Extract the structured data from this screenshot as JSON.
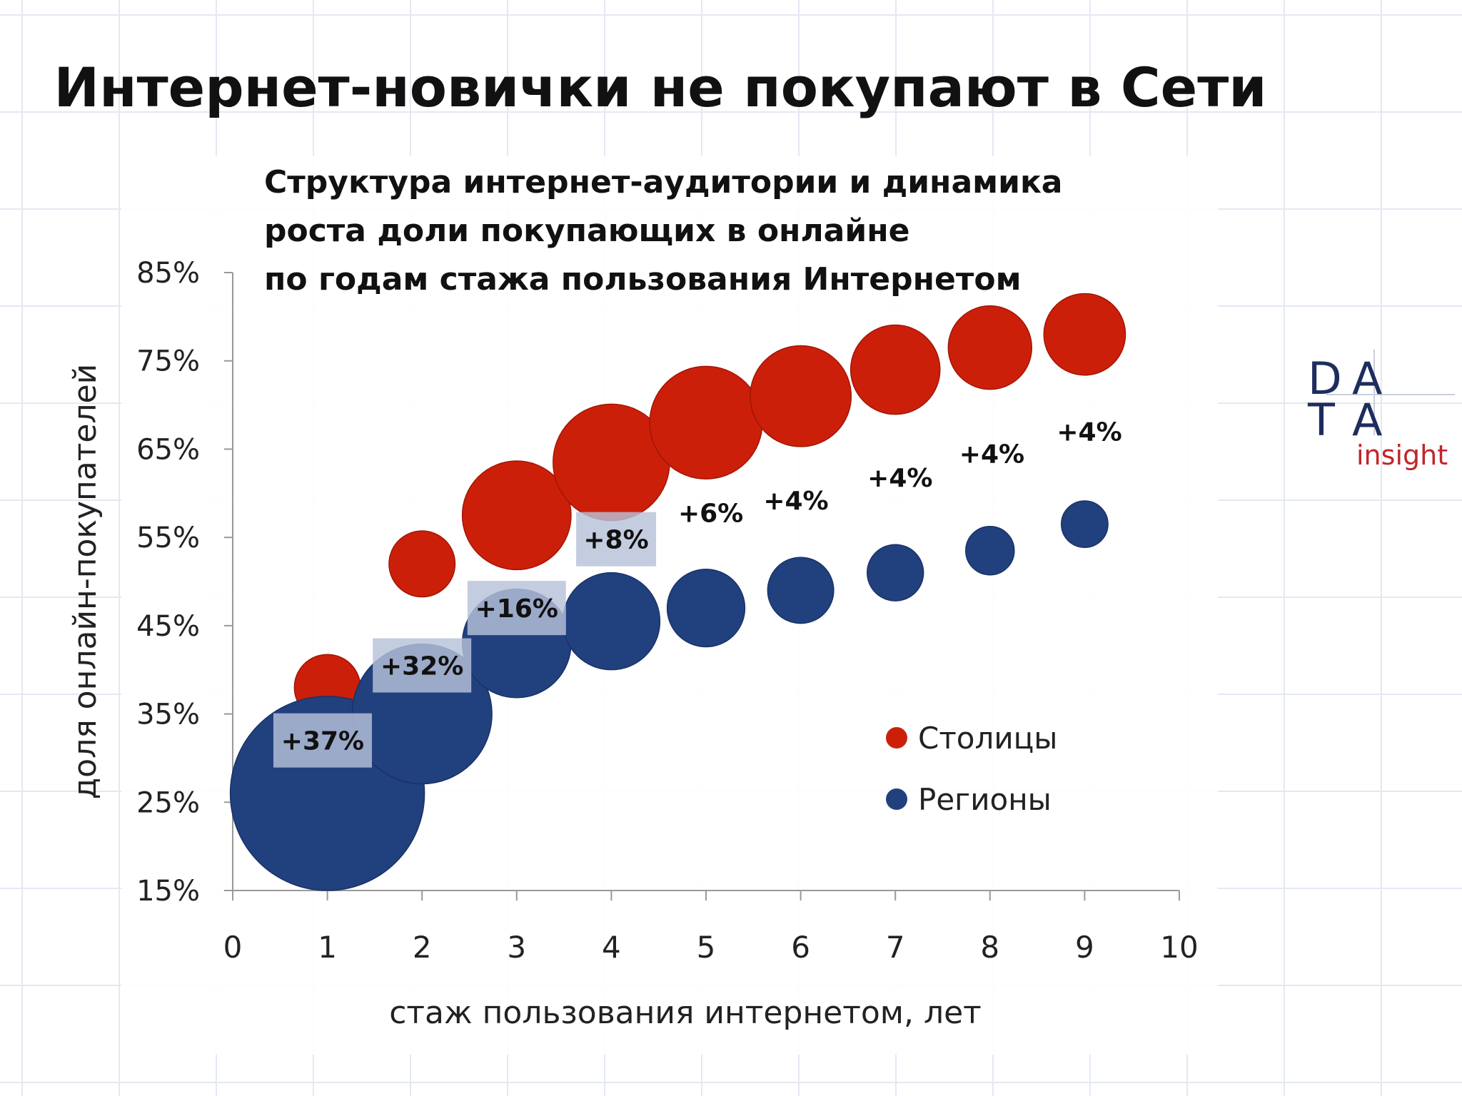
{
  "title": "Интернет-новички не покупают в Сети",
  "subtitle_lines": [
    "Структура интернет-аудитории и динамика",
    "роста доли покупающих в онлайне",
    "по годам стажа пользования Интернетом"
  ],
  "logo": {
    "line1": [
      "D",
      "A"
    ],
    "line2": [
      "T",
      "A"
    ],
    "tagline": "insight"
  },
  "colors": {
    "capitals": "#cc1f0a",
    "regions": "#21407e",
    "label_box": "#b7c2d9"
  },
  "chart_data": {
    "type": "scatter",
    "xlabel": "стаж пользования интернетом, лет",
    "ylabel": "доля онлайн-покупателей",
    "xlim": [
      0,
      10
    ],
    "ylim": [
      15,
      85
    ],
    "xticks": [
      "0",
      "1",
      "2",
      "3",
      "4",
      "5",
      "6",
      "7",
      "8",
      "9",
      "10"
    ],
    "yticks": [
      "15%",
      "25%",
      "35%",
      "45%",
      "55%",
      "65%",
      "75%",
      "85%"
    ],
    "grid": false,
    "legend_position": "bottom-right",
    "series": [
      {
        "name": "Столицы",
        "color": "#cc1f0a",
        "points": [
          {
            "x": 1,
            "y": 38,
            "size": 0.34
          },
          {
            "x": 2,
            "y": 52,
            "size": 0.34
          },
          {
            "x": 3,
            "y": 57.5,
            "size": 0.56
          },
          {
            "x": 4,
            "y": 63.5,
            "size": 0.6
          },
          {
            "x": 5,
            "y": 68,
            "size": 0.58
          },
          {
            "x": 6,
            "y": 71,
            "size": 0.52
          },
          {
            "x": 7,
            "y": 74,
            "size": 0.46
          },
          {
            "x": 8,
            "y": 76.5,
            "size": 0.43
          },
          {
            "x": 9,
            "y": 78,
            "size": 0.42
          }
        ]
      },
      {
        "name": "Регионы",
        "color": "#21407e",
        "points": [
          {
            "x": 1,
            "y": 26,
            "size": 1.0
          },
          {
            "x": 2,
            "y": 35,
            "size": 0.72
          },
          {
            "x": 3,
            "y": 43,
            "size": 0.56
          },
          {
            "x": 4,
            "y": 45.5,
            "size": 0.5
          },
          {
            "x": 5,
            "y": 47,
            "size": 0.4
          },
          {
            "x": 6,
            "y": 49,
            "size": 0.34
          },
          {
            "x": 7,
            "y": 51,
            "size": 0.29
          },
          {
            "x": 8,
            "y": 53.5,
            "size": 0.25
          },
          {
            "x": 9,
            "y": 56.5,
            "size": 0.24
          }
        ]
      }
    ],
    "annotations": [
      {
        "text": "+37%",
        "x": 0.95,
        "y": 32,
        "boxed": true
      },
      {
        "text": "+32%",
        "x": 2.0,
        "y": 40.5,
        "boxed": true
      },
      {
        "text": "+16%",
        "x": 3.0,
        "y": 47,
        "boxed": true
      },
      {
        "text": "+8%",
        "x": 4.05,
        "y": 54.8,
        "boxed": true
      },
      {
        "text": "+6%",
        "x": 5.05,
        "y": 57.8,
        "boxed": false
      },
      {
        "text": "+4%",
        "x": 5.95,
        "y": 59.2,
        "boxed": false
      },
      {
        "text": "+4%",
        "x": 7.05,
        "y": 61.8,
        "boxed": false
      },
      {
        "text": "+4%",
        "x": 8.02,
        "y": 64.5,
        "boxed": false
      },
      {
        "text": "+4%",
        "x": 9.05,
        "y": 67.0,
        "boxed": false
      }
    ]
  }
}
